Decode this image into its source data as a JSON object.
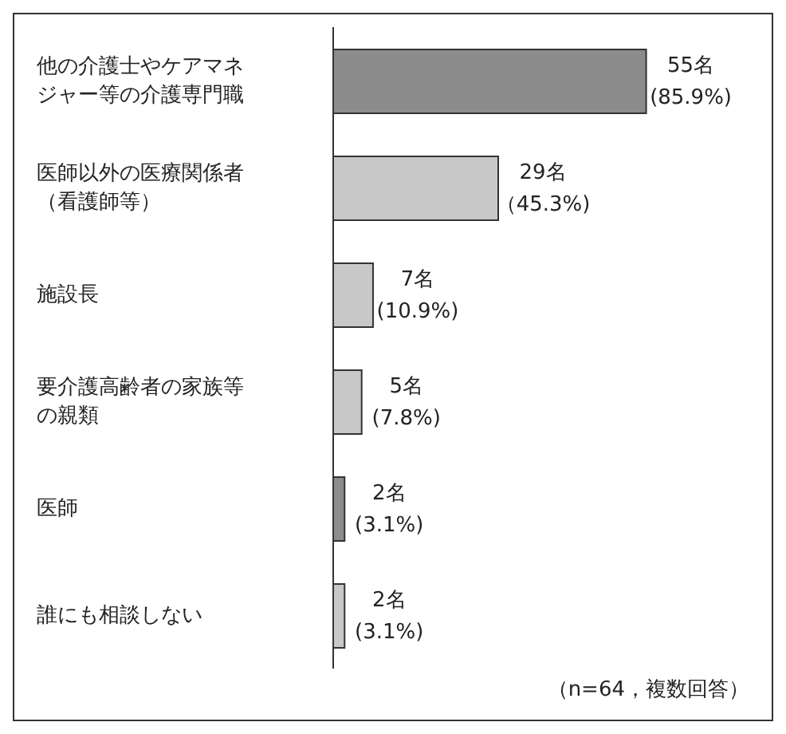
{
  "chart_data": {
    "type": "bar",
    "orientation": "horizontal",
    "categories": [
      "他の介護士やケアマネジャー等の介護専門職",
      "医師以外の医療関係者（看護師等）",
      "施設長",
      "要介護高齢者の家族等の親類",
      "医師",
      "誰にも相談しない"
    ],
    "values": [
      55,
      29,
      7,
      5,
      2,
      2
    ],
    "colors": [
      "#8c8c8c",
      "#c8c8c8",
      "#c8c8c8",
      "#c8c8c8",
      "#8c8c8c",
      "#c8c8c8"
    ],
    "value_labels": [
      "55名(85.9%)",
      "29名（45.3%)",
      "7名(10.9%)",
      "5名(7.8%)",
      "2名(3.1%)",
      "2名(3.1%)"
    ],
    "annotations": [
      "（n=64，複数回答）"
    ]
  }
}
